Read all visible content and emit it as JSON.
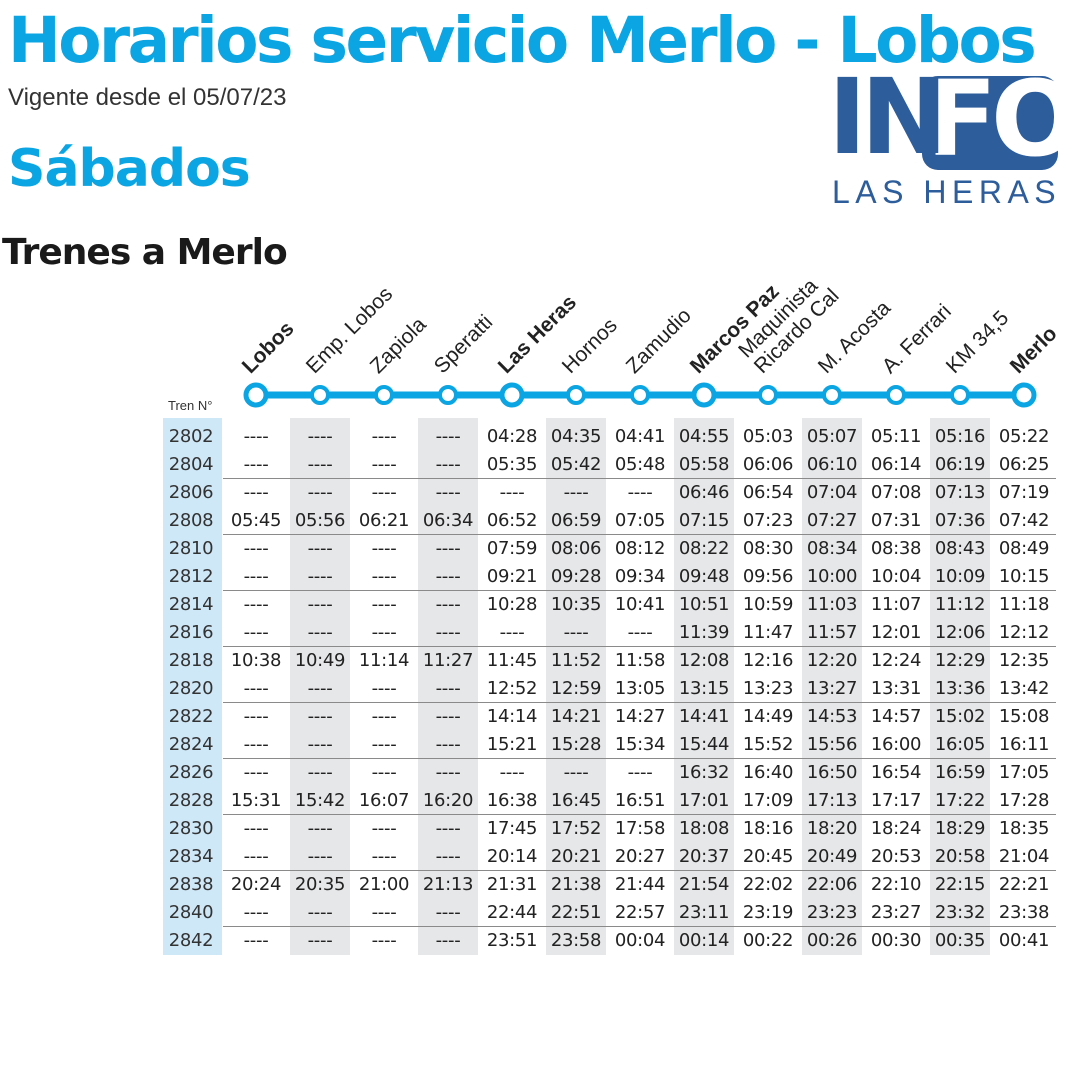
{
  "header": {
    "title": "Horarios servicio Merlo - Lobos",
    "validity": "Vigente desde el 05/07/23",
    "day": "Sábados",
    "direction": "Trenes a Merlo"
  },
  "logo": {
    "main_plain": "IN",
    "main_boxed": "FO",
    "sub": "LAS HERAS"
  },
  "colors": {
    "accent": "#0aa5e2",
    "logo": "#2d5d9b",
    "train_col": "#cfe8f8",
    "shade_col": "#e6e7e9"
  },
  "table": {
    "train_header": "Tren N°",
    "stations": [
      {
        "name": [
          "Lobos"
        ],
        "bold": true
      },
      {
        "name": [
          "Emp. Lobos"
        ],
        "bold": false
      },
      {
        "name": [
          "Zapiola"
        ],
        "bold": false
      },
      {
        "name": [
          "Speratti"
        ],
        "bold": false
      },
      {
        "name": [
          "Las Heras"
        ],
        "bold": true
      },
      {
        "name": [
          "Hornos"
        ],
        "bold": false
      },
      {
        "name": [
          "Zamudio"
        ],
        "bold": false
      },
      {
        "name": [
          "Marcos Paz"
        ],
        "bold": true
      },
      {
        "name": [
          "Maquinista",
          "Ricardo Cal"
        ],
        "bold": false
      },
      {
        "name": [
          "M. Acosta"
        ],
        "bold": false
      },
      {
        "name": [
          "A. Ferrari"
        ],
        "bold": false
      },
      {
        "name": [
          "KM 34,5"
        ],
        "bold": false
      },
      {
        "name": [
          "Merlo"
        ],
        "bold": true
      }
    ],
    "rows": [
      {
        "train": "2802",
        "times": [
          "----",
          "----",
          "----",
          "----",
          "04:28",
          "04:35",
          "04:41",
          "04:55",
          "05:03",
          "05:07",
          "05:11",
          "05:16",
          "05:22"
        ]
      },
      {
        "train": "2804",
        "times": [
          "----",
          "----",
          "----",
          "----",
          "05:35",
          "05:42",
          "05:48",
          "05:58",
          "06:06",
          "06:10",
          "06:14",
          "06:19",
          "06:25"
        ]
      },
      {
        "train": "2806",
        "times": [
          "----",
          "----",
          "----",
          "----",
          "----",
          "----",
          "----",
          "06:46",
          "06:54",
          "07:04",
          "07:08",
          "07:13",
          "07:19"
        ]
      },
      {
        "train": "2808",
        "times": [
          "05:45",
          "05:56",
          "06:21",
          "06:34",
          "06:52",
          "06:59",
          "07:05",
          "07:15",
          "07:23",
          "07:27",
          "07:31",
          "07:36",
          "07:42"
        ]
      },
      {
        "train": "2810",
        "times": [
          "----",
          "----",
          "----",
          "----",
          "07:59",
          "08:06",
          "08:12",
          "08:22",
          "08:30",
          "08:34",
          "08:38",
          "08:43",
          "08:49"
        ]
      },
      {
        "train": "2812",
        "times": [
          "----",
          "----",
          "----",
          "----",
          "09:21",
          "09:28",
          "09:34",
          "09:48",
          "09:56",
          "10:00",
          "10:04",
          "10:09",
          "10:15"
        ]
      },
      {
        "train": "2814",
        "times": [
          "----",
          "----",
          "----",
          "----",
          "10:28",
          "10:35",
          "10:41",
          "10:51",
          "10:59",
          "11:03",
          "11:07",
          "11:12",
          "11:18"
        ]
      },
      {
        "train": "2816",
        "times": [
          "----",
          "----",
          "----",
          "----",
          "----",
          "----",
          "----",
          "11:39",
          "11:47",
          "11:57",
          "12:01",
          "12:06",
          "12:12"
        ]
      },
      {
        "train": "2818",
        "times": [
          "10:38",
          "10:49",
          "11:14",
          "11:27",
          "11:45",
          "11:52",
          "11:58",
          "12:08",
          "12:16",
          "12:20",
          "12:24",
          "12:29",
          "12:35"
        ]
      },
      {
        "train": "2820",
        "times": [
          "----",
          "----",
          "----",
          "----",
          "12:52",
          "12:59",
          "13:05",
          "13:15",
          "13:23",
          "13:27",
          "13:31",
          "13:36",
          "13:42"
        ]
      },
      {
        "train": "2822",
        "times": [
          "----",
          "----",
          "----",
          "----",
          "14:14",
          "14:21",
          "14:27",
          "14:41",
          "14:49",
          "14:53",
          "14:57",
          "15:02",
          "15:08"
        ]
      },
      {
        "train": "2824",
        "times": [
          "----",
          "----",
          "----",
          "----",
          "15:21",
          "15:28",
          "15:34",
          "15:44",
          "15:52",
          "15:56",
          "16:00",
          "16:05",
          "16:11"
        ]
      },
      {
        "train": "2826",
        "times": [
          "----",
          "----",
          "----",
          "----",
          "----",
          "----",
          "----",
          "16:32",
          "16:40",
          "16:50",
          "16:54",
          "16:59",
          "17:05"
        ]
      },
      {
        "train": "2828",
        "times": [
          "15:31",
          "15:42",
          "16:07",
          "16:20",
          "16:38",
          "16:45",
          "16:51",
          "17:01",
          "17:09",
          "17:13",
          "17:17",
          "17:22",
          "17:28"
        ]
      },
      {
        "train": "2830",
        "times": [
          "----",
          "----",
          "----",
          "----",
          "17:45",
          "17:52",
          "17:58",
          "18:08",
          "18:16",
          "18:20",
          "18:24",
          "18:29",
          "18:35"
        ]
      },
      {
        "train": "2834",
        "times": [
          "----",
          "----",
          "----",
          "----",
          "20:14",
          "20:21",
          "20:27",
          "20:37",
          "20:45",
          "20:49",
          "20:53",
          "20:58",
          "21:04"
        ]
      },
      {
        "train": "2838",
        "times": [
          "20:24",
          "20:35",
          "21:00",
          "21:13",
          "21:31",
          "21:38",
          "21:44",
          "21:54",
          "22:02",
          "22:06",
          "22:10",
          "22:15",
          "22:21"
        ]
      },
      {
        "train": "2840",
        "times": [
          "----",
          "----",
          "----",
          "----",
          "22:44",
          "22:51",
          "22:57",
          "23:11",
          "23:19",
          "23:23",
          "23:27",
          "23:32",
          "23:38"
        ]
      },
      {
        "train": "2842",
        "times": [
          "----",
          "----",
          "----",
          "----",
          "23:51",
          "23:58",
          "00:04",
          "00:14",
          "00:22",
          "00:26",
          "00:30",
          "00:35",
          "00:41"
        ]
      }
    ]
  }
}
